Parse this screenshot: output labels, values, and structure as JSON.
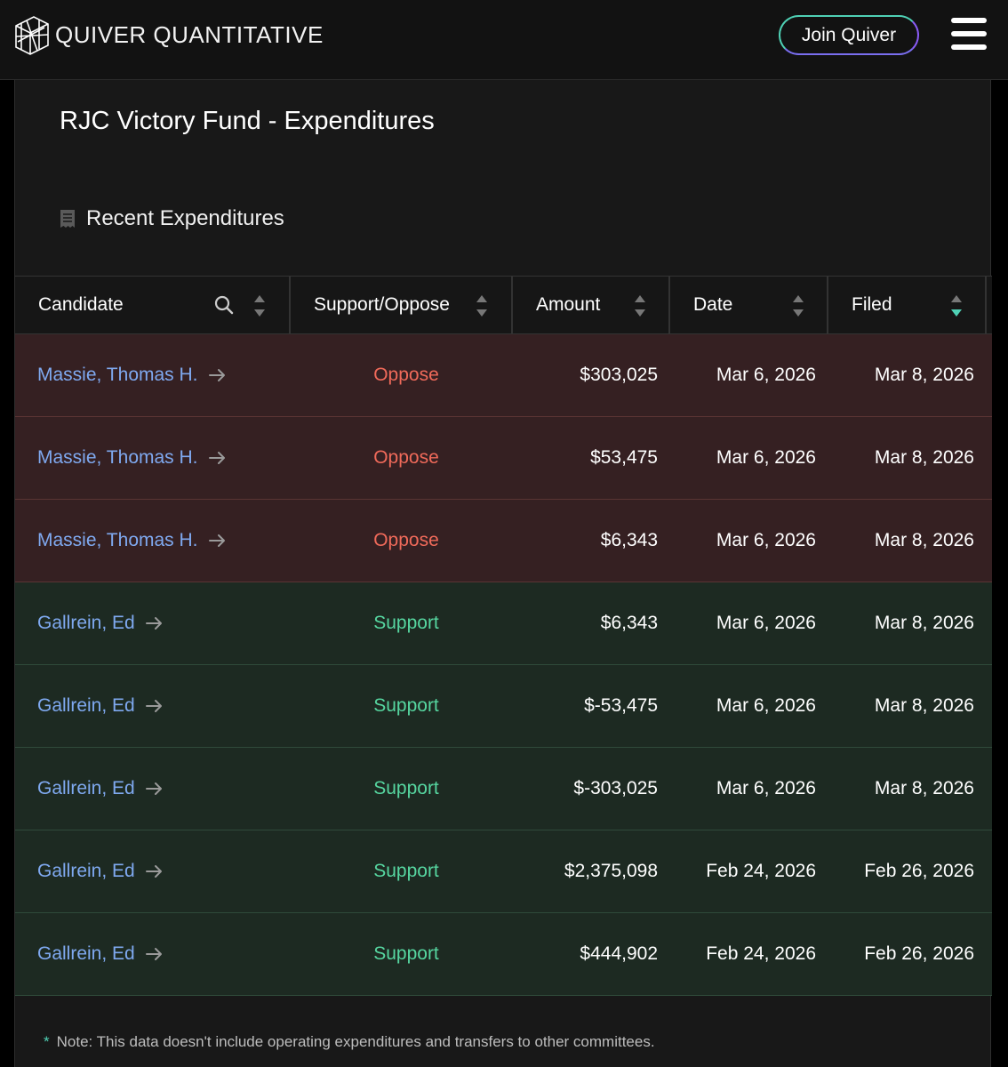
{
  "header": {
    "brand": "QUIVER QUANTITATIVE",
    "join_label": "Join Quiver"
  },
  "page": {
    "title": "RJC Victory Fund - Expenditures",
    "section_title": "Recent Expenditures"
  },
  "table": {
    "columns": [
      "Candidate",
      "Support/Oppose",
      "Amount",
      "Date",
      "Filed"
    ],
    "rows": [
      {
        "candidate": "Massie, Thomas H.",
        "stance": "Oppose",
        "amount": "$303,025",
        "date": "Mar 6, 2026",
        "filed": "Mar 8, 2026"
      },
      {
        "candidate": "Massie, Thomas H.",
        "stance": "Oppose",
        "amount": "$53,475",
        "date": "Mar 6, 2026",
        "filed": "Mar 8, 2026"
      },
      {
        "candidate": "Massie, Thomas H.",
        "stance": "Oppose",
        "amount": "$6,343",
        "date": "Mar 6, 2026",
        "filed": "Mar 8, 2026"
      },
      {
        "candidate": "Gallrein, Ed",
        "stance": "Support",
        "amount": "$6,343",
        "date": "Mar 6, 2026",
        "filed": "Mar 8, 2026"
      },
      {
        "candidate": "Gallrein, Ed",
        "stance": "Support",
        "amount": "$-53,475",
        "date": "Mar 6, 2026",
        "filed": "Mar 8, 2026"
      },
      {
        "candidate": "Gallrein, Ed",
        "stance": "Support",
        "amount": "$-303,025",
        "date": "Mar 6, 2026",
        "filed": "Mar 8, 2026"
      },
      {
        "candidate": "Gallrein, Ed",
        "stance": "Support",
        "amount": "$2,375,098",
        "date": "Feb 24, 2026",
        "filed": "Feb 26, 2026"
      },
      {
        "candidate": "Gallrein, Ed",
        "stance": "Support",
        "amount": "$444,902",
        "date": "Feb 24, 2026",
        "filed": "Feb 26, 2026"
      }
    ]
  },
  "note": {
    "marker": "*",
    "text": "Note: This data doesn't include operating expenditures and transfers to other committees."
  },
  "colors": {
    "oppose_row": "#352022",
    "support_row": "#1d2a22",
    "oppose_text": "#f06a5a",
    "support_text": "#56d6a0",
    "link": "#7fa9f0",
    "accent": "#4fd1b5"
  }
}
